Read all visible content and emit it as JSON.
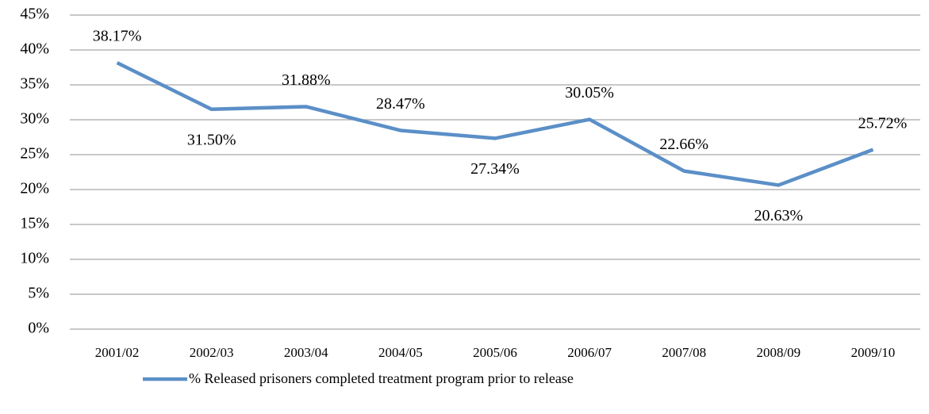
{
  "chart_data": {
    "type": "line",
    "categories": [
      "2001/02",
      "2002/03",
      "2003/04",
      "2004/05",
      "2005/06",
      "2006/07",
      "2007/08",
      "2008/09",
      "2009/10"
    ],
    "series": [
      {
        "name": "% Released prisoners completed treatment program prior to release",
        "color": "#5b8fc7",
        "values": [
          38.17,
          31.5,
          31.88,
          28.47,
          27.34,
          30.05,
          22.66,
          20.63,
          25.72
        ],
        "value_labels": [
          "38.17%",
          "31.50%",
          "31.88%",
          "28.47%",
          "27.34%",
          "30.05%",
          "22.66%",
          "20.63%",
          "25.72%"
        ]
      }
    ],
    "ylim": [
      0,
      45
    ],
    "yticks": [
      {
        "value": 0,
        "label": "0%"
      },
      {
        "value": 5,
        "label": "5%"
      },
      {
        "value": 10,
        "label": "10%"
      },
      {
        "value": 15,
        "label": "15%"
      },
      {
        "value": 20,
        "label": "20%"
      },
      {
        "value": 25,
        "label": "25%"
      },
      {
        "value": 30,
        "label": "30%"
      },
      {
        "value": 35,
        "label": "35%"
      },
      {
        "value": 40,
        "label": "40%"
      },
      {
        "value": 45,
        "label": "45%"
      }
    ],
    "grid": true,
    "legend": "bottom"
  }
}
